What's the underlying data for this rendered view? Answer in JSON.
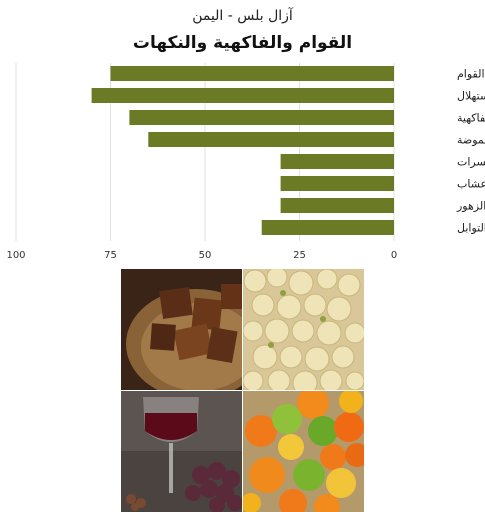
{
  "header": {
    "subtitle": "آزال بلس - اليمن",
    "title": "القوام والفاكهية والنكهات"
  },
  "chart_data": {
    "type": "bar",
    "orientation": "horizontal",
    "direction": "rtl",
    "categories": [
      "القوام",
      "الاستهلال",
      "الفاكهية",
      "الحموضة",
      "المكسرات",
      "الأعشاب",
      "الزهور",
      "التوابل"
    ],
    "values": [
      75,
      80,
      70,
      65,
      30,
      30,
      30,
      35
    ],
    "xticks": [
      100,
      75,
      50,
      25,
      0
    ],
    "xlim": [
      0,
      100
    ],
    "grid": true,
    "bar_color": "#6b7a24"
  },
  "images": [
    {
      "name": "chocolate-photo"
    },
    {
      "name": "grapes-photo"
    },
    {
      "name": "wine-photo"
    },
    {
      "name": "citrus-photo"
    }
  ]
}
